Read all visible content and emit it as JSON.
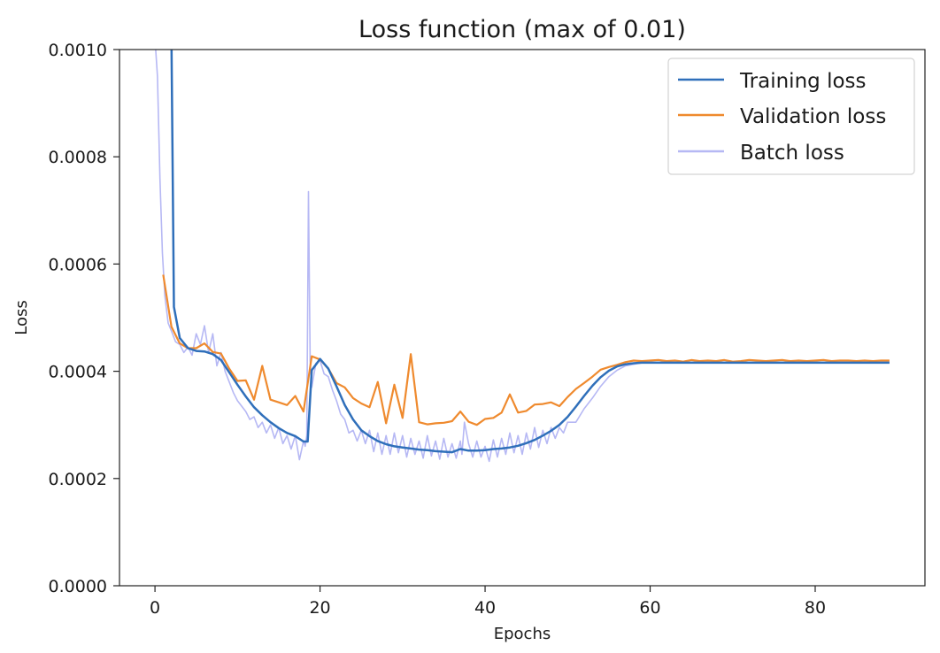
{
  "chart_data": {
    "type": "line",
    "title": "Loss function (max of 0.01)",
    "xlabel": "Epochs",
    "ylabel": "Loss",
    "xlim": [
      -4.3,
      93.3
    ],
    "ylim": [
      0.0,
      0.001
    ],
    "x_ticks": [
      "0",
      "20",
      "40",
      "60",
      "80"
    ],
    "x_tick_values": [
      0,
      20,
      40,
      60,
      80
    ],
    "y_ticks": [
      "0.0000",
      "0.0002",
      "0.0004",
      "0.0006",
      "0.0008",
      "0.0010"
    ],
    "y_tick_values": [
      0.0,
      0.0002,
      0.0004,
      0.0006,
      0.0008,
      0.001
    ],
    "grid": false,
    "legend_position": "top-right",
    "series": [
      {
        "name": "Training loss",
        "color": "#2f6fba",
        "x": [
          2,
          2.3,
          3,
          4,
          5,
          6,
          7,
          8,
          9,
          10,
          11,
          12,
          13,
          14,
          15,
          16,
          17,
          18,
          18.5,
          19,
          20,
          21,
          22,
          23,
          24,
          25,
          26,
          27,
          28,
          29,
          30,
          31,
          32,
          33,
          34,
          35,
          36,
          37,
          38,
          39,
          40,
          41,
          42,
          43,
          44,
          45,
          46,
          47,
          48,
          49,
          50,
          51,
          52,
          53,
          54,
          55,
          56,
          57,
          58,
          59,
          60,
          61,
          62,
          63,
          64,
          65,
          66,
          67,
          68,
          69,
          70,
          71,
          72,
          73,
          74,
          75,
          76,
          77,
          78,
          79,
          80,
          81,
          82,
          83,
          84,
          85,
          86,
          87,
          88,
          89
        ],
        "y": [
          0.00102,
          0.00052,
          0.000462,
          0.000443,
          0.000438,
          0.000437,
          0.000432,
          0.000421,
          0.000398,
          0.000375,
          0.000353,
          0.000333,
          0.000318,
          0.000305,
          0.000294,
          0.000285,
          0.000279,
          0.000269,
          0.000269,
          0.000402,
          0.000423,
          0.000405,
          0.000372,
          0.000337,
          0.00031,
          0.00029,
          0.000279,
          0.00027,
          0.000264,
          0.00026,
          0.000258,
          0.000256,
          0.000254,
          0.000253,
          0.000251,
          0.00025,
          0.000249,
          0.000255,
          0.000252,
          0.000252,
          0.000253,
          0.000255,
          0.000256,
          0.000258,
          0.000261,
          0.000266,
          0.000272,
          0.00028,
          0.000289,
          0.0003,
          0.000315,
          0.000334,
          0.000354,
          0.000373,
          0.000389,
          0.000401,
          0.000409,
          0.000413,
          0.000415,
          0.000416,
          0.000416,
          0.000416,
          0.000416,
          0.000416,
          0.000416,
          0.000416,
          0.000416,
          0.000416,
          0.000416,
          0.000416,
          0.000416,
          0.000416,
          0.000416,
          0.000416,
          0.000416,
          0.000416,
          0.000416,
          0.000416,
          0.000416,
          0.000416,
          0.000416,
          0.000416,
          0.000416,
          0.000416,
          0.000416,
          0.000416,
          0.000416,
          0.000416,
          0.000416,
          0.000416
        ]
      },
      {
        "name": "Validation loss",
        "color": "#ef8a2e",
        "x": [
          1,
          2,
          3,
          4,
          5,
          6,
          7,
          8,
          9,
          10,
          11,
          12,
          13,
          14,
          15,
          16,
          17,
          18,
          19,
          20,
          21,
          22,
          23,
          24,
          25,
          26,
          27,
          28,
          29,
          30,
          31,
          32,
          33,
          34,
          35,
          36,
          37,
          38,
          39,
          40,
          41,
          42,
          43,
          44,
          45,
          46,
          47,
          48,
          49,
          50,
          51,
          52,
          53,
          54,
          55,
          56,
          57,
          58,
          59,
          60,
          61,
          62,
          63,
          64,
          65,
          66,
          67,
          68,
          69,
          70,
          71,
          72,
          73,
          74,
          75,
          76,
          77,
          78,
          79,
          80,
          81,
          82,
          83,
          84,
          85,
          86,
          87,
          88,
          89
        ],
        "y": [
          0.00058,
          0.000483,
          0.000452,
          0.000443,
          0.000443,
          0.000452,
          0.000436,
          0.000433,
          0.000405,
          0.000382,
          0.000383,
          0.000347,
          0.00041,
          0.000347,
          0.000342,
          0.000337,
          0.000354,
          0.000325,
          0.000428,
          0.000422,
          0.000405,
          0.000378,
          0.00037,
          0.00035,
          0.00034,
          0.000333,
          0.00038,
          0.000303,
          0.000375,
          0.000313,
          0.000432,
          0.000305,
          0.000301,
          0.000303,
          0.000304,
          0.000307,
          0.000325,
          0.000306,
          0.0003,
          0.000311,
          0.000313,
          0.000323,
          0.000357,
          0.000323,
          0.000326,
          0.000338,
          0.000339,
          0.000342,
          0.000335,
          0.000352,
          0.000367,
          0.000378,
          0.00039,
          0.000403,
          0.000408,
          0.000412,
          0.000417,
          0.00042,
          0.000419,
          0.00042,
          0.000421,
          0.000419,
          0.00042,
          0.000418,
          0.000421,
          0.000419,
          0.00042,
          0.000419,
          0.000421,
          0.000418,
          0.000419,
          0.000421,
          0.00042,
          0.000419,
          0.00042,
          0.000421,
          0.000419,
          0.00042,
          0.000419,
          0.00042,
          0.000421,
          0.000419,
          0.00042,
          0.00042,
          0.000419,
          0.00042,
          0.000419,
          0.00042,
          0.00042
        ]
      },
      {
        "name": "Batch loss",
        "color": "#b6b8f4",
        "x": [
          0,
          0.3,
          0.6,
          0.9,
          1.2,
          1.6,
          2,
          2.5,
          3,
          3.5,
          4,
          4.5,
          5,
          5.5,
          6,
          6.5,
          7,
          7.5,
          8,
          8.5,
          9,
          9.5,
          10,
          10.5,
          11,
          11.5,
          12,
          12.5,
          13,
          13.5,
          14,
          14.5,
          15,
          15.5,
          16,
          16.5,
          17,
          17.5,
          18,
          18.2,
          18.4,
          18.6,
          18.8,
          19,
          19.5,
          20,
          20.5,
          21,
          21.5,
          22,
          22.5,
          23,
          23.5,
          24,
          24.5,
          25,
          25.5,
          26,
          26.5,
          27,
          27.5,
          28,
          28.5,
          29,
          29.5,
          30,
          30.5,
          31,
          31.5,
          32,
          32.5,
          33,
          33.5,
          34,
          34.5,
          35,
          35.5,
          36,
          36.5,
          37,
          37.2,
          37.5,
          38,
          38.5,
          39,
          39.5,
          40,
          40.5,
          41,
          41.5,
          42,
          42.5,
          43,
          43.5,
          44,
          44.5,
          45,
          45.5,
          46,
          46.5,
          47,
          47.5,
          48,
          48.5,
          49,
          49.5,
          50,
          51,
          52,
          53,
          54,
          55,
          56,
          57,
          58,
          59,
          60,
          62,
          64,
          66,
          68,
          70,
          72,
          74,
          76,
          78,
          80,
          82,
          84,
          86,
          88,
          89
        ],
        "y": [
          0.00102,
          0.00095,
          0.00076,
          0.00062,
          0.00054,
          0.00049,
          0.000475,
          0.000455,
          0.00045,
          0.000435,
          0.000445,
          0.00043,
          0.00047,
          0.00045,
          0.000485,
          0.000435,
          0.00047,
          0.00041,
          0.000435,
          0.0004,
          0.00038,
          0.00036,
          0.000345,
          0.000335,
          0.000325,
          0.00031,
          0.000315,
          0.000295,
          0.000305,
          0.000285,
          0.0003,
          0.000275,
          0.000295,
          0.000265,
          0.00028,
          0.000255,
          0.00028,
          0.000235,
          0.00027,
          0.00026,
          0.00028,
          0.000735,
          0.00042,
          0.00037,
          0.000415,
          0.00042,
          0.000395,
          0.00039,
          0.000365,
          0.000345,
          0.00032,
          0.00031,
          0.000285,
          0.00029,
          0.00027,
          0.00029,
          0.000265,
          0.00029,
          0.00025,
          0.000285,
          0.000245,
          0.00028,
          0.000245,
          0.000285,
          0.000248,
          0.00028,
          0.00024,
          0.000275,
          0.000245,
          0.00027,
          0.000238,
          0.00028,
          0.000242,
          0.00027,
          0.000236,
          0.000275,
          0.00024,
          0.000265,
          0.000238,
          0.00027,
          0.000245,
          0.000305,
          0.000265,
          0.00024,
          0.00027,
          0.00024,
          0.00026,
          0.000232,
          0.000272,
          0.00024,
          0.000275,
          0.000245,
          0.000285,
          0.000248,
          0.00028,
          0.000245,
          0.000285,
          0.000255,
          0.000295,
          0.000258,
          0.00029,
          0.000265,
          0.000295,
          0.000275,
          0.000295,
          0.000285,
          0.000305,
          0.000305,
          0.00033,
          0.00035,
          0.000372,
          0.00039,
          0.000402,
          0.00041,
          0.000413,
          0.000416,
          0.000416,
          0.000416,
          0.000416,
          0.000416,
          0.000416,
          0.000416,
          0.000416,
          0.000416,
          0.000416,
          0.000416,
          0.000416,
          0.000416,
          0.000416,
          0.000416,
          0.000416,
          0.000416
        ]
      }
    ]
  }
}
